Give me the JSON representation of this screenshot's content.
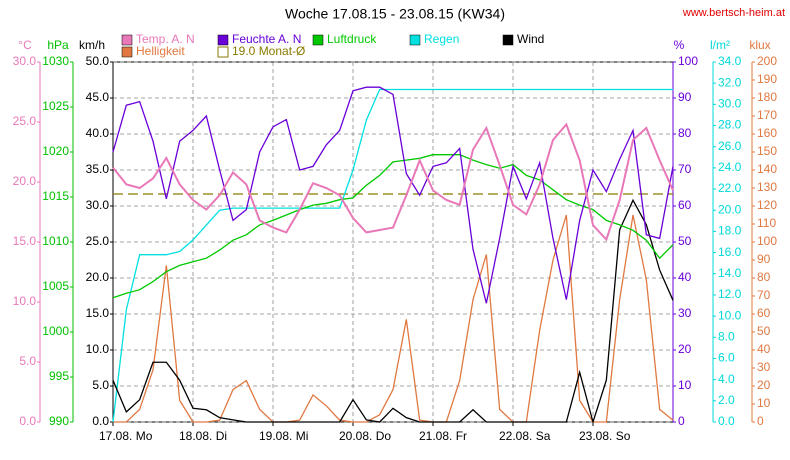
{
  "chart_data": {
    "type": "line",
    "title": "Woche 17.08.15 - 23.08.15 (KW34)",
    "source": "www.bertsch-heim.at",
    "grid": true,
    "grid_axis": 2,
    "xlim": [
      0,
      168
    ],
    "xticks": [
      {
        "value": 0,
        "label": "17.08.  Mo"
      },
      {
        "value": 24,
        "label": "18.08.  Di"
      },
      {
        "value": 48,
        "label": "19.08.  Mi"
      },
      {
        "value": 72,
        "label": "20.08.  Do"
      },
      {
        "value": 96,
        "label": "21.08.  Fr"
      },
      {
        "value": 120,
        "label": "22.08.  Sa"
      },
      {
        "value": 144,
        "label": "23.08.  So"
      }
    ],
    "x": [
      0,
      4,
      8,
      12,
      16,
      20,
      24,
      28,
      32,
      36,
      40,
      44,
      48,
      52,
      56,
      60,
      64,
      68,
      72,
      76,
      80,
      84,
      88,
      92,
      96,
      100,
      104,
      108,
      112,
      116,
      120,
      124,
      128,
      132,
      136,
      140,
      144,
      148,
      152,
      156,
      160,
      164,
      168
    ],
    "axes": [
      {
        "label": "°C",
        "color": "#e878b8",
        "lim": [
          0,
          30
        ],
        "ticks": [
          {
            "value": 0,
            "label": "0.0"
          },
          {
            "value": 5,
            "label": "5.0"
          },
          {
            "value": 10,
            "label": "10.0"
          },
          {
            "value": 15,
            "label": "15.0"
          },
          {
            "value": 20,
            "label": "20.0"
          },
          {
            "value": 25,
            "label": "25.0"
          },
          {
            "value": 30,
            "label": "30.0"
          }
        ]
      },
      {
        "label": "hPa",
        "color": "#00c000",
        "lim": [
          990,
          1030
        ],
        "ticks": [
          990,
          995,
          1000,
          1005,
          1010,
          1015,
          1020,
          1025,
          1030
        ]
      },
      {
        "label": "km/h",
        "color": "#000000",
        "lim": [
          0,
          50
        ],
        "ticks": [
          {
            "value": 0,
            "label": "0.0"
          },
          {
            "value": 5,
            "label": "5.0"
          },
          {
            "value": 10,
            "label": "10.0"
          },
          {
            "value": 15,
            "label": "15.0"
          },
          {
            "value": 20,
            "label": "20.0"
          },
          {
            "value": 25,
            "label": "25.0"
          },
          {
            "value": 30,
            "label": "30.0"
          },
          {
            "value": 35,
            "label": "35.0"
          },
          {
            "value": 40,
            "label": "40.0"
          },
          {
            "value": 45,
            "label": "45.0"
          },
          {
            "value": 50,
            "label": "50.0"
          }
        ]
      },
      {
        "label": "%",
        "color": "#6a00d8",
        "lim": [
          0,
          100
        ],
        "ticks": [
          0,
          10,
          20,
          30,
          40,
          50,
          60,
          70,
          80,
          90,
          100
        ]
      },
      {
        "label": "l/m²",
        "color": "#00d8d8",
        "lim": [
          0,
          34
        ],
        "ticks": [
          {
            "value": 0,
            "label": "0.0"
          },
          {
            "value": 2,
            "label": "2.0"
          },
          {
            "value": 4,
            "label": "4.0"
          },
          {
            "value": 6,
            "label": "6.0"
          },
          {
            "value": 8,
            "label": "8.0"
          },
          {
            "value": 10,
            "label": "10.0"
          },
          {
            "value": 12,
            "label": "12.0"
          },
          {
            "value": 14,
            "label": "14.0"
          },
          {
            "value": 16,
            "label": "16.0"
          },
          {
            "value": 18,
            "label": "18.0"
          },
          {
            "value": 20,
            "label": "20.0"
          },
          {
            "value": 22,
            "label": "22.0"
          },
          {
            "value": 24,
            "label": "24.0"
          },
          {
            "value": 26,
            "label": "26.0"
          },
          {
            "value": 28,
            "label": "28.0"
          },
          {
            "value": 30,
            "label": "30.0"
          },
          {
            "value": 32,
            "label": "32.0"
          },
          {
            "value": 34,
            "label": "34.0"
          }
        ]
      },
      {
        "label": "klux",
        "color": "#e07840",
        "lim": [
          0,
          200
        ],
        "ticks": [
          0,
          10,
          20,
          30,
          40,
          50,
          60,
          70,
          80,
          90,
          100,
          110,
          120,
          130,
          140,
          150,
          160,
          170,
          180,
          190,
          200
        ]
      }
    ],
    "series": [
      {
        "name": "Temp. A. N",
        "color": "#e878b8",
        "axis": 0,
        "values": [
          21.2,
          19.8,
          19.5,
          20.3,
          22.0,
          19.8,
          18.5,
          17.7,
          18.9,
          20.8,
          19.8,
          16.8,
          16.2,
          15.8,
          17.7,
          19.9,
          19.5,
          18.9,
          17.0,
          15.8,
          16.0,
          16.2,
          18.9,
          21.8,
          19.3,
          18.5,
          18.1,
          22.7,
          24.5,
          21.4,
          18.1,
          17.3,
          19.8,
          23.5,
          24.8,
          21.8,
          16.4,
          15.2,
          18.5,
          23.5,
          24.5,
          21.8,
          19.3
        ]
      },
      {
        "name": "Feuchte A. N",
        "color": "#6a00d8",
        "axis": 3,
        "values": [
          75,
          88,
          89,
          78,
          62,
          78,
          81,
          85,
          70,
          56,
          59,
          75,
          82,
          84,
          70,
          71,
          77,
          81,
          92,
          93,
          93,
          91,
          69,
          63,
          71,
          72,
          76,
          48,
          33,
          51,
          71,
          62,
          72,
          51,
          34,
          56,
          70,
          64,
          73,
          81,
          52,
          51,
          71
        ]
      },
      {
        "name": "Luftdruck",
        "color": "#00c800",
        "axis": 1,
        "values": [
          1003.8,
          1004.3,
          1004.7,
          1005.6,
          1006.7,
          1007.4,
          1007.8,
          1008.2,
          1009.1,
          1010.2,
          1010.8,
          1011.9,
          1012.4,
          1013.0,
          1013.6,
          1014.1,
          1014.3,
          1014.7,
          1014.9,
          1016.3,
          1017.4,
          1018.9,
          1019.1,
          1019.3,
          1019.7,
          1019.7,
          1019.7,
          1019.1,
          1018.6,
          1018.2,
          1018.6,
          1017.4,
          1016.9,
          1015.8,
          1014.7,
          1014.1,
          1013.6,
          1012.4,
          1011.9,
          1011.3,
          1010.2,
          1008.2,
          1009.7
        ]
      },
      {
        "name": "Regen",
        "color": "#00e0e0",
        "axis": 4,
        "values": [
          0,
          10.6,
          15.8,
          15.8,
          15.8,
          16.1,
          17.2,
          18.6,
          20.0,
          20.2,
          20.2,
          20.2,
          20.2,
          20.2,
          20.2,
          20.2,
          20.2,
          20.2,
          23.8,
          28.5,
          31.4,
          31.4,
          31.4,
          31.4,
          31.4,
          31.4,
          31.4,
          31.4,
          31.4,
          31.4,
          31.4,
          31.4,
          31.4,
          31.4,
          31.4,
          31.4,
          31.4,
          31.4,
          31.4,
          31.4,
          31.4,
          31.4,
          31.4
        ]
      },
      {
        "name": "Wind",
        "color": "#000000",
        "axis": 2,
        "values": [
          5.8,
          1.4,
          3.1,
          8.3,
          8.3,
          5.8,
          1.9,
          1.7,
          0.6,
          0.3,
          0,
          0,
          0,
          0,
          0,
          0,
          0,
          0,
          3.1,
          0.3,
          0,
          1.9,
          0.6,
          0,
          0,
          0,
          0,
          1.7,
          0,
          0,
          0,
          0,
          0,
          0,
          0,
          6.9,
          0,
          5.8,
          26.7,
          30.8,
          27.4,
          21.1,
          16.9
        ]
      },
      {
        "name": "Helligkeit",
        "color": "#e07840",
        "axis": 5,
        "values": [
          0,
          0,
          7,
          29,
          87,
          12,
          0,
          0,
          1,
          18,
          23,
          7,
          0,
          0,
          1,
          15,
          9,
          1,
          0,
          0,
          4,
          18,
          57,
          1,
          0,
          0,
          23,
          68,
          93,
          7,
          0,
          0,
          51,
          90,
          115,
          12,
          0,
          0,
          68,
          115,
          79,
          7,
          1
        ]
      }
    ],
    "reference": {
      "name": "19.0 Monat-Ø",
      "value": 19.0,
      "axis": 0,
      "color": "#8a7a00"
    }
  }
}
